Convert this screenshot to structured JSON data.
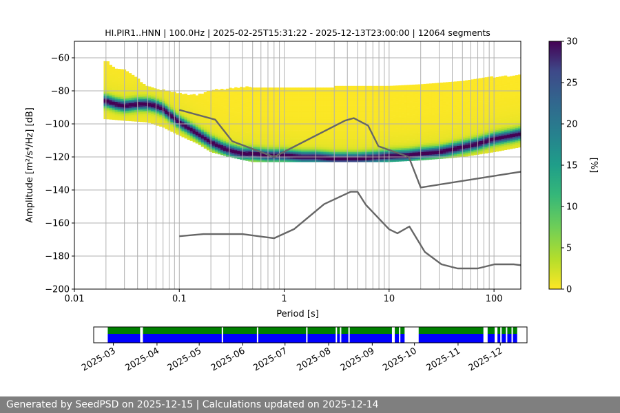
{
  "chart_data": [
    {
      "type": "heatmap",
      "title": "HI.PIR1..HNN | 100.0Hz | 2025-02-25T15:31:22 - 2025-12-13T23:00:00 | 12064 segments",
      "xlabel": "Period [s]",
      "ylabel": "Amplitude [m²/s⁴/Hz] [dB]",
      "xscale": "log",
      "xlim": [
        0.01,
        180
      ],
      "ylim": [
        -200,
        -50
      ],
      "x_ticks": [
        "0.01",
        "0.1",
        "1",
        "10",
        "100"
      ],
      "y_ticks": [
        "−60",
        "−80",
        "−100",
        "−120",
        "−140",
        "−160",
        "−180",
        "−200"
      ],
      "grid": "vertical lines at log minor ticks",
      "colormap": "viridis_r",
      "colorbar": {
        "label": "[%]",
        "min": 0,
        "max": 30,
        "ticks": [
          "0",
          "5",
          "10",
          "15",
          "20",
          "25",
          "30"
        ]
      },
      "mode_curve": {
        "x": [
          0.02,
          0.025,
          0.03,
          0.04,
          0.05,
          0.06,
          0.07,
          0.08,
          0.1,
          0.12,
          0.15,
          0.2,
          0.25,
          0.3,
          0.4,
          0.5,
          0.7,
          1,
          1.5,
          2,
          3,
          5,
          8,
          10,
          15,
          20,
          30,
          50,
          70,
          100,
          150,
          180
        ],
        "y": [
          -86,
          -88,
          -89,
          -88,
          -88,
          -89,
          -91,
          -94,
          -99,
          -102,
          -106,
          -111,
          -114,
          -116,
          -118,
          -118,
          -119,
          -119,
          -120,
          -120,
          -121,
          -121,
          -120,
          -119.5,
          -119,
          -118,
          -117,
          -114,
          -112,
          -109,
          -107,
          -106
        ]
      },
      "upper_envelope": {
        "x": [
          0.02,
          0.025,
          0.03,
          0.04,
          0.05,
          0.07,
          0.1,
          0.15,
          0.2,
          0.3,
          0.5,
          0.7,
          1,
          2,
          3,
          5,
          10,
          20,
          50,
          100,
          180
        ],
        "y": [
          -62,
          -67,
          -67,
          -73,
          -78,
          -80,
          -82,
          -83,
          -80,
          -79,
          -78,
          -79,
          -78,
          -79,
          -78,
          -77,
          -77,
          -76,
          -74,
          -72,
          -71
        ]
      },
      "lower_envelope": {
        "x": [
          0.02,
          0.03,
          0.05,
          0.07,
          0.1,
          0.15,
          0.2,
          0.3,
          0.5,
          1,
          2,
          5,
          10,
          20,
          50,
          100,
          180
        ],
        "y": [
          -97,
          -98,
          -99,
          -102,
          -107,
          -112,
          -117,
          -120,
          -123,
          -123,
          -123,
          -123,
          -123,
          -122,
          -120,
          -117,
          -114
        ]
      },
      "noise_model_high": {
        "x": [
          0.1,
          0.22,
          0.32,
          0.8,
          3.8,
          4.6,
          6.3,
          7.9,
          15.4,
          20,
          354.8
        ],
        "y": [
          -91.5,
          -97.4,
          -110.5,
          -120.0,
          -98.0,
          -96.5,
          -101.0,
          -113.5,
          -120.0,
          -138.5,
          -126.0
        ]
      },
      "noise_model_low": {
        "x": [
          0.1,
          0.17,
          0.4,
          0.8,
          1.24,
          2.4,
          4.3,
          5.0,
          6.0,
          10.0,
          12.0,
          15.6,
          21.9,
          31.6,
          45.0,
          70.0,
          101.0,
          154.0,
          328.0
        ],
        "y": [
          -168.0,
          -166.7,
          -166.7,
          -169.2,
          -163.7,
          -148.6,
          -141.1,
          -141.1,
          -149.0,
          -163.8,
          -166.2,
          -162.1,
          -177.5,
          -185.0,
          -187.5,
          -187.5,
          -185.0,
          -185.0,
          -187.5
        ]
      }
    },
    {
      "type": "timeline",
      "xlim": [
        "2025-02-15",
        "2025-12-20"
      ],
      "x_ticks": [
        "2025-03",
        "2025-04",
        "2025-05",
        "2025-06",
        "2025-07",
        "2025-08",
        "2025-09",
        "2025-10",
        "2025-11",
        "2025-12"
      ],
      "coverage_span": [
        "2025-02-25",
        "2025-12-13"
      ],
      "gaps": [
        [
          "2025-03-20",
          "2025-03-22"
        ],
        [
          "2025-05-17",
          "2025-05-18"
        ],
        [
          "2025-06-11",
          "2025-06-12"
        ],
        [
          "2025-07-16",
          "2025-07-17"
        ],
        [
          "2025-08-06",
          "2025-08-07"
        ],
        [
          "2025-08-09",
          "2025-08-10"
        ],
        [
          "2025-08-15",
          "2025-08-16"
        ],
        [
          "2025-09-15",
          "2025-09-17"
        ],
        [
          "2025-09-20",
          "2025-09-21"
        ],
        [
          "2025-09-24",
          "2025-10-04"
        ],
        [
          "2025-11-19",
          "2025-11-22"
        ],
        [
          "2025-11-27",
          "2025-11-29"
        ],
        [
          "2025-12-01",
          "2025-12-02"
        ],
        [
          "2025-12-05",
          "2025-12-06"
        ],
        [
          "2025-12-09",
          "2025-12-10"
        ]
      ],
      "upper_track_color": "#008000",
      "lower_track_color": "#0000ff"
    }
  ],
  "footer": {
    "text": "Generated by SeedPSD on 2025-12-15 | Calculations updated on 2025-12-14"
  }
}
